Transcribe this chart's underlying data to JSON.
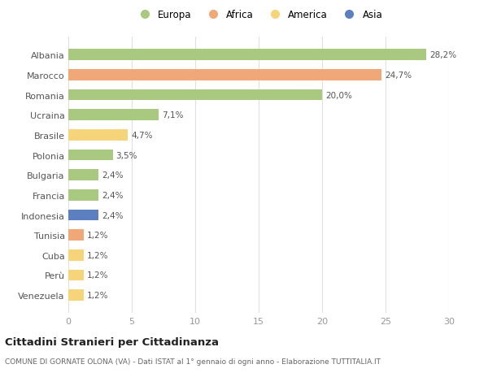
{
  "countries": [
    "Albania",
    "Marocco",
    "Romania",
    "Ucraina",
    "Brasile",
    "Polonia",
    "Bulgaria",
    "Francia",
    "Indonesia",
    "Tunisia",
    "Cuba",
    "Perù",
    "Venezuela"
  ],
  "values": [
    28.2,
    24.7,
    20.0,
    7.1,
    4.7,
    3.5,
    2.4,
    2.4,
    2.4,
    1.2,
    1.2,
    1.2,
    1.2
  ],
  "labels": [
    "28,2%",
    "24,7%",
    "20,0%",
    "7,1%",
    "4,7%",
    "3,5%",
    "2,4%",
    "2,4%",
    "2,4%",
    "1,2%",
    "1,2%",
    "1,2%",
    "1,2%"
  ],
  "colors": [
    "#a8c97f",
    "#f0a878",
    "#a8c97f",
    "#a8c97f",
    "#f5d47a",
    "#a8c97f",
    "#a8c97f",
    "#a8c97f",
    "#5b7fbf",
    "#f0a878",
    "#f5d47a",
    "#f5d47a",
    "#f5d47a"
  ],
  "legend": [
    {
      "label": "Europa",
      "color": "#a8c97f"
    },
    {
      "label": "Africa",
      "color": "#f0a878"
    },
    {
      "label": "America",
      "color": "#f5d47a"
    },
    {
      "label": "Asia",
      "color": "#5b7fbf"
    }
  ],
  "xlim": [
    0,
    30
  ],
  "xticks": [
    0,
    5,
    10,
    15,
    20,
    25,
    30
  ],
  "title": "Cittadini Stranieri per Cittadinanza",
  "subtitle": "COMUNE DI GORNATE OLONA (VA) - Dati ISTAT al 1° gennaio di ogni anno - Elaborazione TUTTITALIA.IT",
  "background_color": "#ffffff",
  "grid_color": "#e0e0e0",
  "bar_height": 0.55,
  "label_fontsize": 7.5,
  "ytick_fontsize": 8,
  "xtick_fontsize": 8
}
